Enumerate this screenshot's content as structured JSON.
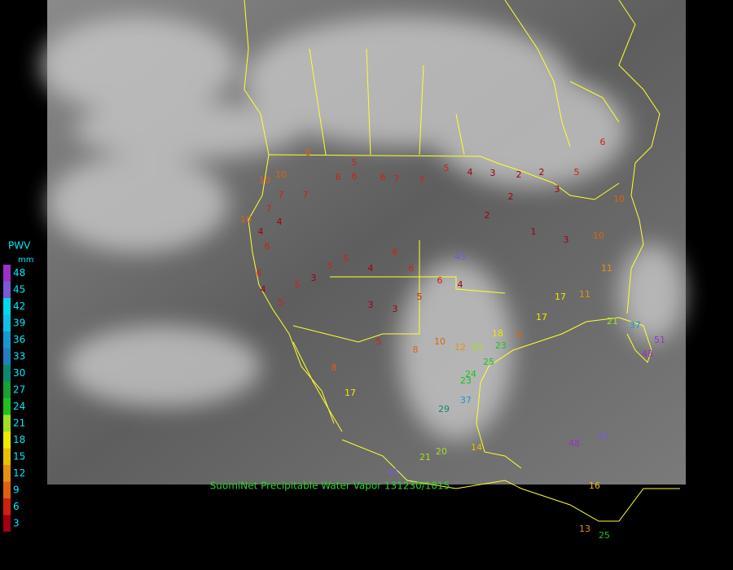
{
  "legend": {
    "title": "PWV",
    "unit": "mm",
    "items": [
      {
        "label": "48",
        "color": "#9a30c8"
      },
      {
        "label": "45",
        "color": "#7a58d8"
      },
      {
        "label": "42",
        "color": "#00d8f0"
      },
      {
        "label": "39",
        "color": "#10c0e8"
      },
      {
        "label": "36",
        "color": "#1898d0"
      },
      {
        "label": "33",
        "color": "#2080c0"
      },
      {
        "label": "30",
        "color": "#108870"
      },
      {
        "label": "27",
        "color": "#18a030"
      },
      {
        "label": "24",
        "color": "#20c020"
      },
      {
        "label": "21",
        "color": "#a0e020"
      },
      {
        "label": "18",
        "color": "#f0e800"
      },
      {
        "label": "15",
        "color": "#e8c000"
      },
      {
        "label": "12",
        "color": "#e89010"
      },
      {
        "label": "9",
        "color": "#e06010"
      },
      {
        "label": "6",
        "color": "#d02010"
      },
      {
        "label": "3",
        "color": "#a00010"
      }
    ]
  },
  "caption": "SuomiNet Precipitable Water Vapor 131230/1015",
  "stations": [
    5,
    6,
    6,
    6,
    7,
    7,
    5,
    4,
    3,
    2,
    2,
    3,
    8,
    10,
    10,
    7,
    7,
    7,
    4,
    10,
    4,
    6,
    6,
    4,
    5,
    5,
    3,
    5,
    5,
    4,
    6,
    6,
    3,
    3,
    5,
    6,
    4,
    45,
    2,
    2,
    1,
    3,
    10,
    11,
    10,
    5,
    6,
    17,
    17,
    11,
    21,
    37,
    48,
    51,
    23,
    25,
    24,
    23,
    29,
    37,
    21,
    20,
    44,
    14,
    48,
    45,
    16,
    13,
    25,
    17,
    8,
    5,
    8,
    10,
    12,
    20,
    9,
    18
  ]
}
